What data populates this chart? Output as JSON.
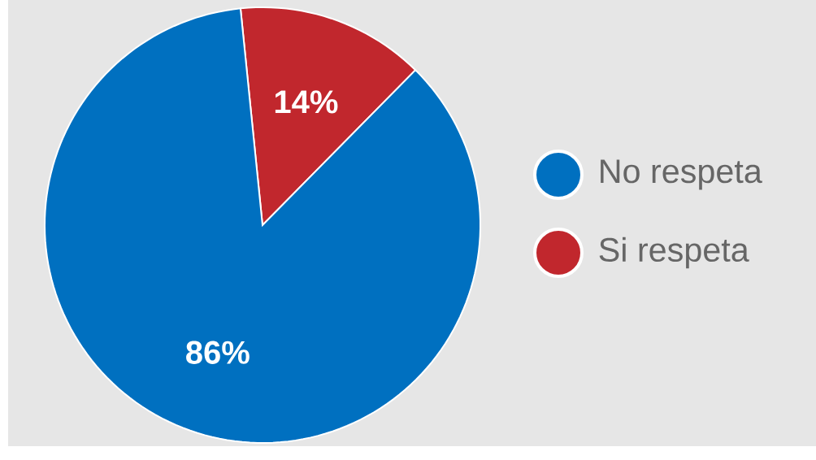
{
  "chart_data": {
    "type": "pie",
    "categories": [
      "No respeta",
      "Si respeta"
    ],
    "values": [
      86,
      14
    ],
    "colors": [
      "#0070c0",
      "#c1272d"
    ],
    "value_labels": [
      "86%",
      "14%"
    ],
    "legend": "right"
  }
}
